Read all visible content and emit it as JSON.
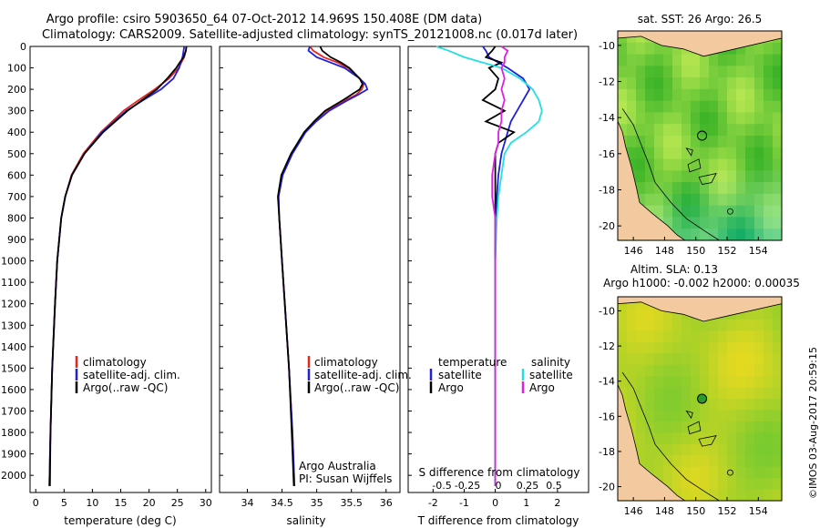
{
  "title": {
    "line1": "Argo profile: csiro 5903650_64 07-Oct-2012 14.969S 150.408E (DM data)",
    "line2": "Climatology: CARS2009. Satellite-adjusted climatology: synTS_20121008.nc (0.017d later)"
  },
  "colors": {
    "climatology": "#e8251c",
    "satellite": "#1f1fdd",
    "argo": "#000000",
    "satellite_s": "#22e0e0",
    "argo_s": "#e020e0",
    "land": "#f3c9a0"
  },
  "chart_data": [
    {
      "type": "line",
      "name": "temperature",
      "xlabel": "temperature (deg C)",
      "ylabel": "",
      "xlim": [
        -1,
        31
      ],
      "ylim": [
        2080,
        0
      ],
      "xticks": [
        "0",
        "5",
        "10",
        "15",
        "20",
        "25",
        "30"
      ],
      "yticks": [
        "0",
        "100",
        "200",
        "300",
        "400",
        "500",
        "600",
        "700",
        "800",
        "900",
        "1000",
        "1100",
        "1200",
        "1300",
        "1400",
        "1500",
        "1600",
        "1700",
        "1800",
        "1900",
        "2000"
      ],
      "legend": [
        "climatology",
        "satellite-adj. clim.",
        "Argo(..raw -QC)"
      ],
      "depth": [
        0,
        20,
        50,
        75,
        100,
        150,
        200,
        250,
        300,
        400,
        500,
        600,
        700,
        800,
        1000,
        1200,
        1500,
        1800,
        2050
      ],
      "series": [
        {
          "name": "climatology",
          "values": [
            26.6,
            26.5,
            26.2,
            25.7,
            25.2,
            23.5,
            21.0,
            18.2,
            15.5,
            11.5,
            8.4,
            6.3,
            5.2,
            4.5,
            3.8,
            3.4,
            2.9,
            2.6,
            2.4
          ]
        },
        {
          "name": "satellite-adj. clim.",
          "values": [
            26.2,
            26.1,
            25.9,
            25.6,
            25.3,
            24.3,
            22.1,
            19.0,
            16.0,
            11.7,
            8.6,
            6.4,
            5.2,
            4.5,
            3.8,
            3.4,
            2.9,
            2.6,
            2.4
          ]
        },
        {
          "name": "Argo",
          "values": [
            26.6,
            26.5,
            26.1,
            25.4,
            24.8,
            23.2,
            21.4,
            18.8,
            16.2,
            11.9,
            8.6,
            6.4,
            5.2,
            4.5,
            3.8,
            3.4,
            2.9,
            2.6,
            2.5
          ]
        }
      ]
    },
    {
      "type": "line",
      "name": "salinity",
      "xlabel": "salinity",
      "xlim": [
        33.6,
        36.2
      ],
      "ylim": [
        2080,
        0
      ],
      "xticks": [
        "34",
        "34.5",
        "35",
        "35.5",
        "36"
      ],
      "legend": [
        "climatology",
        "satellite-adj. clim.",
        "Argo(..raw -QC)"
      ],
      "annotation": [
        "Argo Australia",
        "PI: Susan Wijffels"
      ],
      "depth": [
        0,
        20,
        50,
        75,
        100,
        150,
        175,
        200,
        225,
        250,
        300,
        350,
        400,
        500,
        600,
        700,
        800,
        1000,
        1200,
        1500,
        1800,
        2050
      ],
      "series": [
        {
          "name": "climatology",
          "values": [
            34.9,
            34.95,
            35.1,
            35.3,
            35.45,
            35.62,
            35.68,
            35.65,
            35.57,
            35.42,
            35.14,
            34.96,
            34.83,
            34.64,
            34.5,
            34.45,
            34.46,
            34.5,
            34.54,
            34.6,
            34.65,
            34.68
          ]
        },
        {
          "name": "satellite-adj. clim.",
          "values": [
            34.9,
            34.88,
            35.0,
            35.2,
            35.4,
            35.62,
            35.7,
            35.73,
            35.6,
            35.45,
            35.18,
            34.99,
            34.84,
            34.65,
            34.51,
            34.45,
            34.46,
            34.5,
            34.54,
            34.6,
            34.65,
            34.68
          ]
        },
        {
          "name": "Argo",
          "values": [
            35.05,
            35.08,
            35.2,
            35.35,
            35.47,
            35.62,
            35.66,
            35.62,
            35.5,
            35.38,
            35.12,
            34.96,
            34.82,
            34.63,
            34.49,
            34.44,
            34.46,
            34.5,
            34.54,
            34.6,
            34.64,
            34.67
          ]
        }
      ]
    },
    {
      "type": "line",
      "name": "difference",
      "xlabel": "T difference from climatology",
      "xlabel_top": "S difference from climatology",
      "xlim": [
        -2.8,
        3.0
      ],
      "ylim": [
        2080,
        0
      ],
      "xticks": [
        "-2",
        "-1",
        "0",
        "1",
        "2"
      ],
      "xticks_s": [
        "-0.5",
        "-0.25",
        "0",
        "0.25",
        "0.5"
      ],
      "legend_t": [
        "temperature",
        "satellite",
        "Argo"
      ],
      "legend_s": [
        "salinity",
        "satellite",
        "Argo"
      ],
      "depth": [
        0,
        20,
        50,
        75,
        100,
        150,
        200,
        250,
        300,
        350,
        400,
        450,
        500,
        600,
        700,
        800,
        1000,
        1200,
        1500,
        2050
      ],
      "series": [
        {
          "name": "T satellite",
          "values": [
            -0.4,
            -0.3,
            -0.2,
            0.1,
            0.4,
            0.9,
            1.1,
            0.9,
            0.7,
            0.5,
            0.4,
            0.3,
            0.2,
            0.1,
            0.05,
            0.02,
            0.0,
            0.0,
            0.0,
            0.0
          ]
        },
        {
          "name": "T Argo",
          "values": [
            0.0,
            -0.1,
            -0.3,
            0.2,
            -0.2,
            0.1,
            0.0,
            -0.4,
            0.3,
            -0.3,
            0.6,
            0.1,
            0.0,
            0.0,
            0.0,
            0.0,
            0.0,
            0.0,
            0.0,
            0.0
          ]
        },
        {
          "name": "S satellite",
          "values": [
            -1.9,
            -1.5,
            -1.0,
            -0.4,
            0.2,
            0.8,
            1.2,
            1.4,
            1.5,
            1.4,
            1.0,
            0.5,
            0.3,
            0.2,
            0.1,
            0.05,
            0.0,
            0.0,
            0.0,
            0.0
          ]
        },
        {
          "name": "S Argo",
          "values": [
            0.2,
            0.4,
            0.3,
            0.3,
            0.2,
            0.3,
            0.2,
            0.3,
            0.2,
            0.2,
            0.1,
            0.1,
            0.0,
            -0.1,
            -0.1,
            0.0,
            0.0,
            0.0,
            0.0,
            0.0
          ]
        }
      ]
    },
    {
      "type": "heatmap",
      "name": "sst-map",
      "title": "sat. SST: 26  Argo: 26.5",
      "xlim": [
        145,
        155.5
      ],
      "ylim": [
        -20.8,
        -9.2
      ],
      "xticks": [
        "146",
        "148",
        "150",
        "152",
        "154"
      ],
      "yticks": [
        "-10",
        "-12",
        "-14",
        "-16",
        "-18",
        "-20"
      ],
      "marker": {
        "lon": 150.4,
        "lat": -15.0
      }
    },
    {
      "type": "heatmap",
      "name": "sla-map",
      "title": "Altim. SLA: 0.13",
      "subtitle": "Argo h1000: -0.002 h2000: 0.00035",
      "xlim": [
        145,
        155.5
      ],
      "ylim": [
        -20.8,
        -9.2
      ],
      "xticks": [
        "146",
        "148",
        "150",
        "152",
        "154"
      ],
      "yticks": [
        "-10",
        "-12",
        "-14",
        "-16",
        "-18",
        "-20"
      ],
      "marker": {
        "lon": 150.4,
        "lat": -15.0
      }
    }
  ],
  "side_text": "©IMOS 03-Aug-2017 20:59:15"
}
